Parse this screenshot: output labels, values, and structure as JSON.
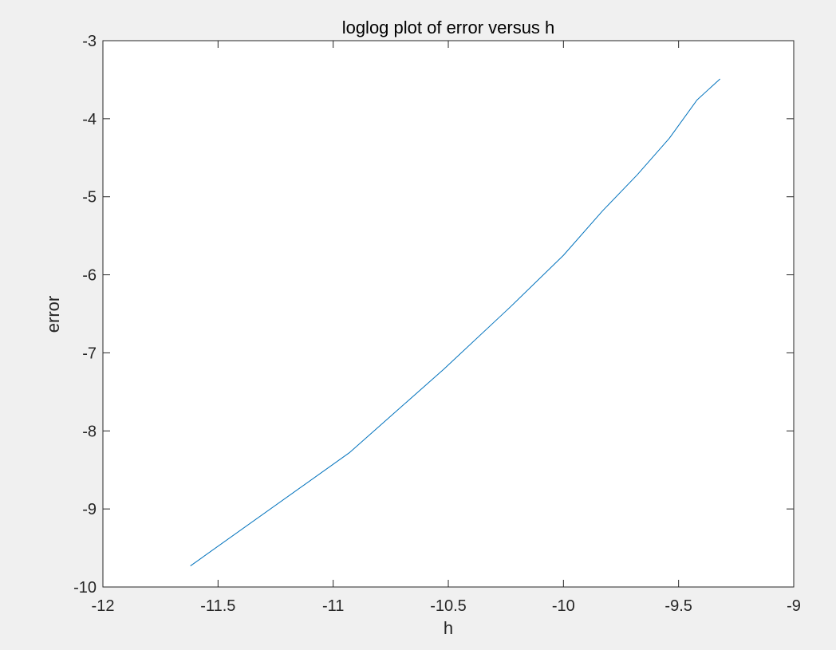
{
  "chart_data": {
    "type": "line",
    "title": "loglog plot of error versus h",
    "xlabel": "h",
    "ylabel": "error",
    "xlim": [
      -12,
      -9
    ],
    "ylim": [
      -10,
      -3
    ],
    "xticks": [
      -12,
      -11.5,
      -11,
      -10.5,
      -10,
      -9.5,
      -9
    ],
    "yticks": [
      -10,
      -9,
      -8,
      -7,
      -6,
      -5,
      -4,
      -3
    ],
    "xtick_labels": [
      "-12",
      "-11.5",
      "-11",
      "-10.5",
      "-10",
      "-9.5",
      "-9"
    ],
    "ytick_labels": [
      "-10",
      "-9",
      "-8",
      "-7",
      "-6",
      "-5",
      "-4",
      "-3"
    ],
    "grid": false,
    "series": [
      {
        "color": "#0072bd",
        "x": [
          -11.62,
          -10.93,
          -10.52,
          -10.23,
          -10.0,
          -9.83,
          -9.68,
          -9.54,
          -9.42,
          -9.32
        ],
        "y": [
          -9.73,
          -8.28,
          -7.21,
          -6.41,
          -5.75,
          -5.18,
          -4.72,
          -4.25,
          -3.76,
          -3.49
        ]
      }
    ]
  }
}
